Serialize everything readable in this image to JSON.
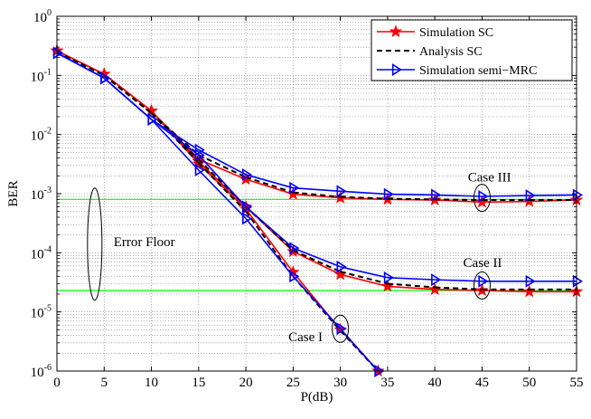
{
  "chart_data": {
    "type": "line",
    "title": "",
    "xlabel": "P(dB)",
    "ylabel": "BER",
    "xlim": [
      0,
      55
    ],
    "ylim_log10": [
      -6,
      0
    ],
    "x_ticks": [
      0,
      5,
      10,
      15,
      20,
      25,
      30,
      35,
      40,
      45,
      50,
      55
    ],
    "y_tick_exponents": [
      -6,
      -5,
      -4,
      -3,
      -2,
      -1,
      0
    ],
    "y_tick_base": "10",
    "grid": true,
    "legend_position": "top-right",
    "series": [
      {
        "name": "Simulation SC",
        "color": "#ff0000",
        "style": "solid",
        "marker": "star",
        "curves": [
          {
            "x": [
              0,
              5,
              10,
              15,
              20,
              25,
              30,
              35,
              40,
              45,
              50,
              55
            ],
            "y": [
              0.26,
              0.105,
              0.025,
              0.0038,
              0.00175,
              0.00098,
              0.00085,
              0.0008,
              0.00078,
              0.00072,
              0.00074,
              0.00078
            ]
          },
          {
            "x": [
              0,
              5,
              10,
              15,
              20,
              25,
              30,
              35,
              40,
              45,
              50,
              55
            ],
            "y": [
              0.26,
              0.105,
              0.025,
              0.0035,
              0.0006,
              0.000105,
              4.3e-05,
              2.7e-05,
              2.4e-05,
              2.3e-05,
              2.2e-05,
              2.2e-05
            ]
          },
          {
            "x": [
              0,
              5,
              10,
              15,
              20,
              25,
              30,
              34
            ],
            "y": [
              0.26,
              0.105,
              0.025,
              0.0032,
              0.00055,
              4.7e-05,
              5e-06,
              1e-06
            ]
          }
        ]
      },
      {
        "name": "Analysis SC",
        "color": "#000000",
        "style": "dashed",
        "marker": "none",
        "curves": [
          {
            "x": [
              0,
              5,
              10,
              15,
              20,
              25,
              30,
              35,
              40,
              45,
              50,
              55
            ],
            "y": [
              0.25,
              0.1,
              0.023,
              0.0045,
              0.0019,
              0.00105,
              0.00088,
              0.00082,
              0.0008,
              0.00078,
              0.00078,
              0.00078
            ]
          },
          {
            "x": [
              0,
              5,
              10,
              15,
              20,
              25,
              30,
              35,
              40,
              45,
              50,
              55
            ],
            "y": [
              0.25,
              0.1,
              0.023,
              0.0038,
              0.0006,
              0.00011,
              4.8e-05,
              3e-05,
              2.6e-05,
              2.4e-05,
              2.4e-05,
              2.4e-05
            ]
          },
          {
            "x": [
              0,
              5,
              10,
              15,
              20,
              25,
              30,
              34
            ],
            "y": [
              0.25,
              0.1,
              0.023,
              0.0033,
              0.0005,
              4e-05,
              4.8e-06,
              1e-06
            ]
          }
        ]
      },
      {
        "name": "Simulation semi−MRC",
        "color": "#0000ff",
        "style": "solid",
        "marker": "triangle-right",
        "curves": [
          {
            "x": [
              0,
              5,
              10,
              15,
              20,
              25,
              30,
              35,
              40,
              45,
              50,
              55
            ],
            "y": [
              0.24,
              0.09,
              0.018,
              0.0055,
              0.0021,
              0.00125,
              0.0011,
              0.00098,
              0.00095,
              0.0009,
              0.00093,
              0.00095
            ]
          },
          {
            "x": [
              0,
              5,
              10,
              15,
              20,
              25,
              30,
              35,
              40,
              45,
              50,
              55
            ],
            "y": [
              0.24,
              0.09,
              0.018,
              0.0045,
              0.0006,
              0.00012,
              5.8e-05,
              3.8e-05,
              3.5e-05,
              3.3e-05,
              3.3e-05,
              3.3e-05
            ]
          },
          {
            "x": [
              0,
              5,
              10,
              15,
              20,
              25,
              30,
              34
            ],
            "y": [
              0.24,
              0.09,
              0.018,
              0.0025,
              0.00038,
              4e-05,
              5.2e-06,
              1e-06
            ]
          }
        ]
      }
    ],
    "reference_lines": [
      {
        "y": 0.0008,
        "color": "#00ff00"
      },
      {
        "y": 2.3e-05,
        "color": "#00ff00"
      }
    ],
    "annotations": [
      {
        "text": "Case III",
        "x": 43.5,
        "y": 0.0016,
        "ellipse": {
          "x": 45,
          "y": 0.00085
        }
      },
      {
        "text": "Case II",
        "x": 43,
        "y": 5.8e-05,
        "ellipse": {
          "x": 45,
          "y": 2.8e-05
        }
      },
      {
        "text": "Case I",
        "x": 24.5,
        "y": 3.2e-06,
        "ellipse": {
          "x": 30,
          "y": 5.2e-06
        }
      },
      {
        "text": "Error Floor",
        "x": 6,
        "y": 0.00013,
        "ellipse": {
          "x": 4,
          "y": 0.00014
        }
      }
    ]
  }
}
